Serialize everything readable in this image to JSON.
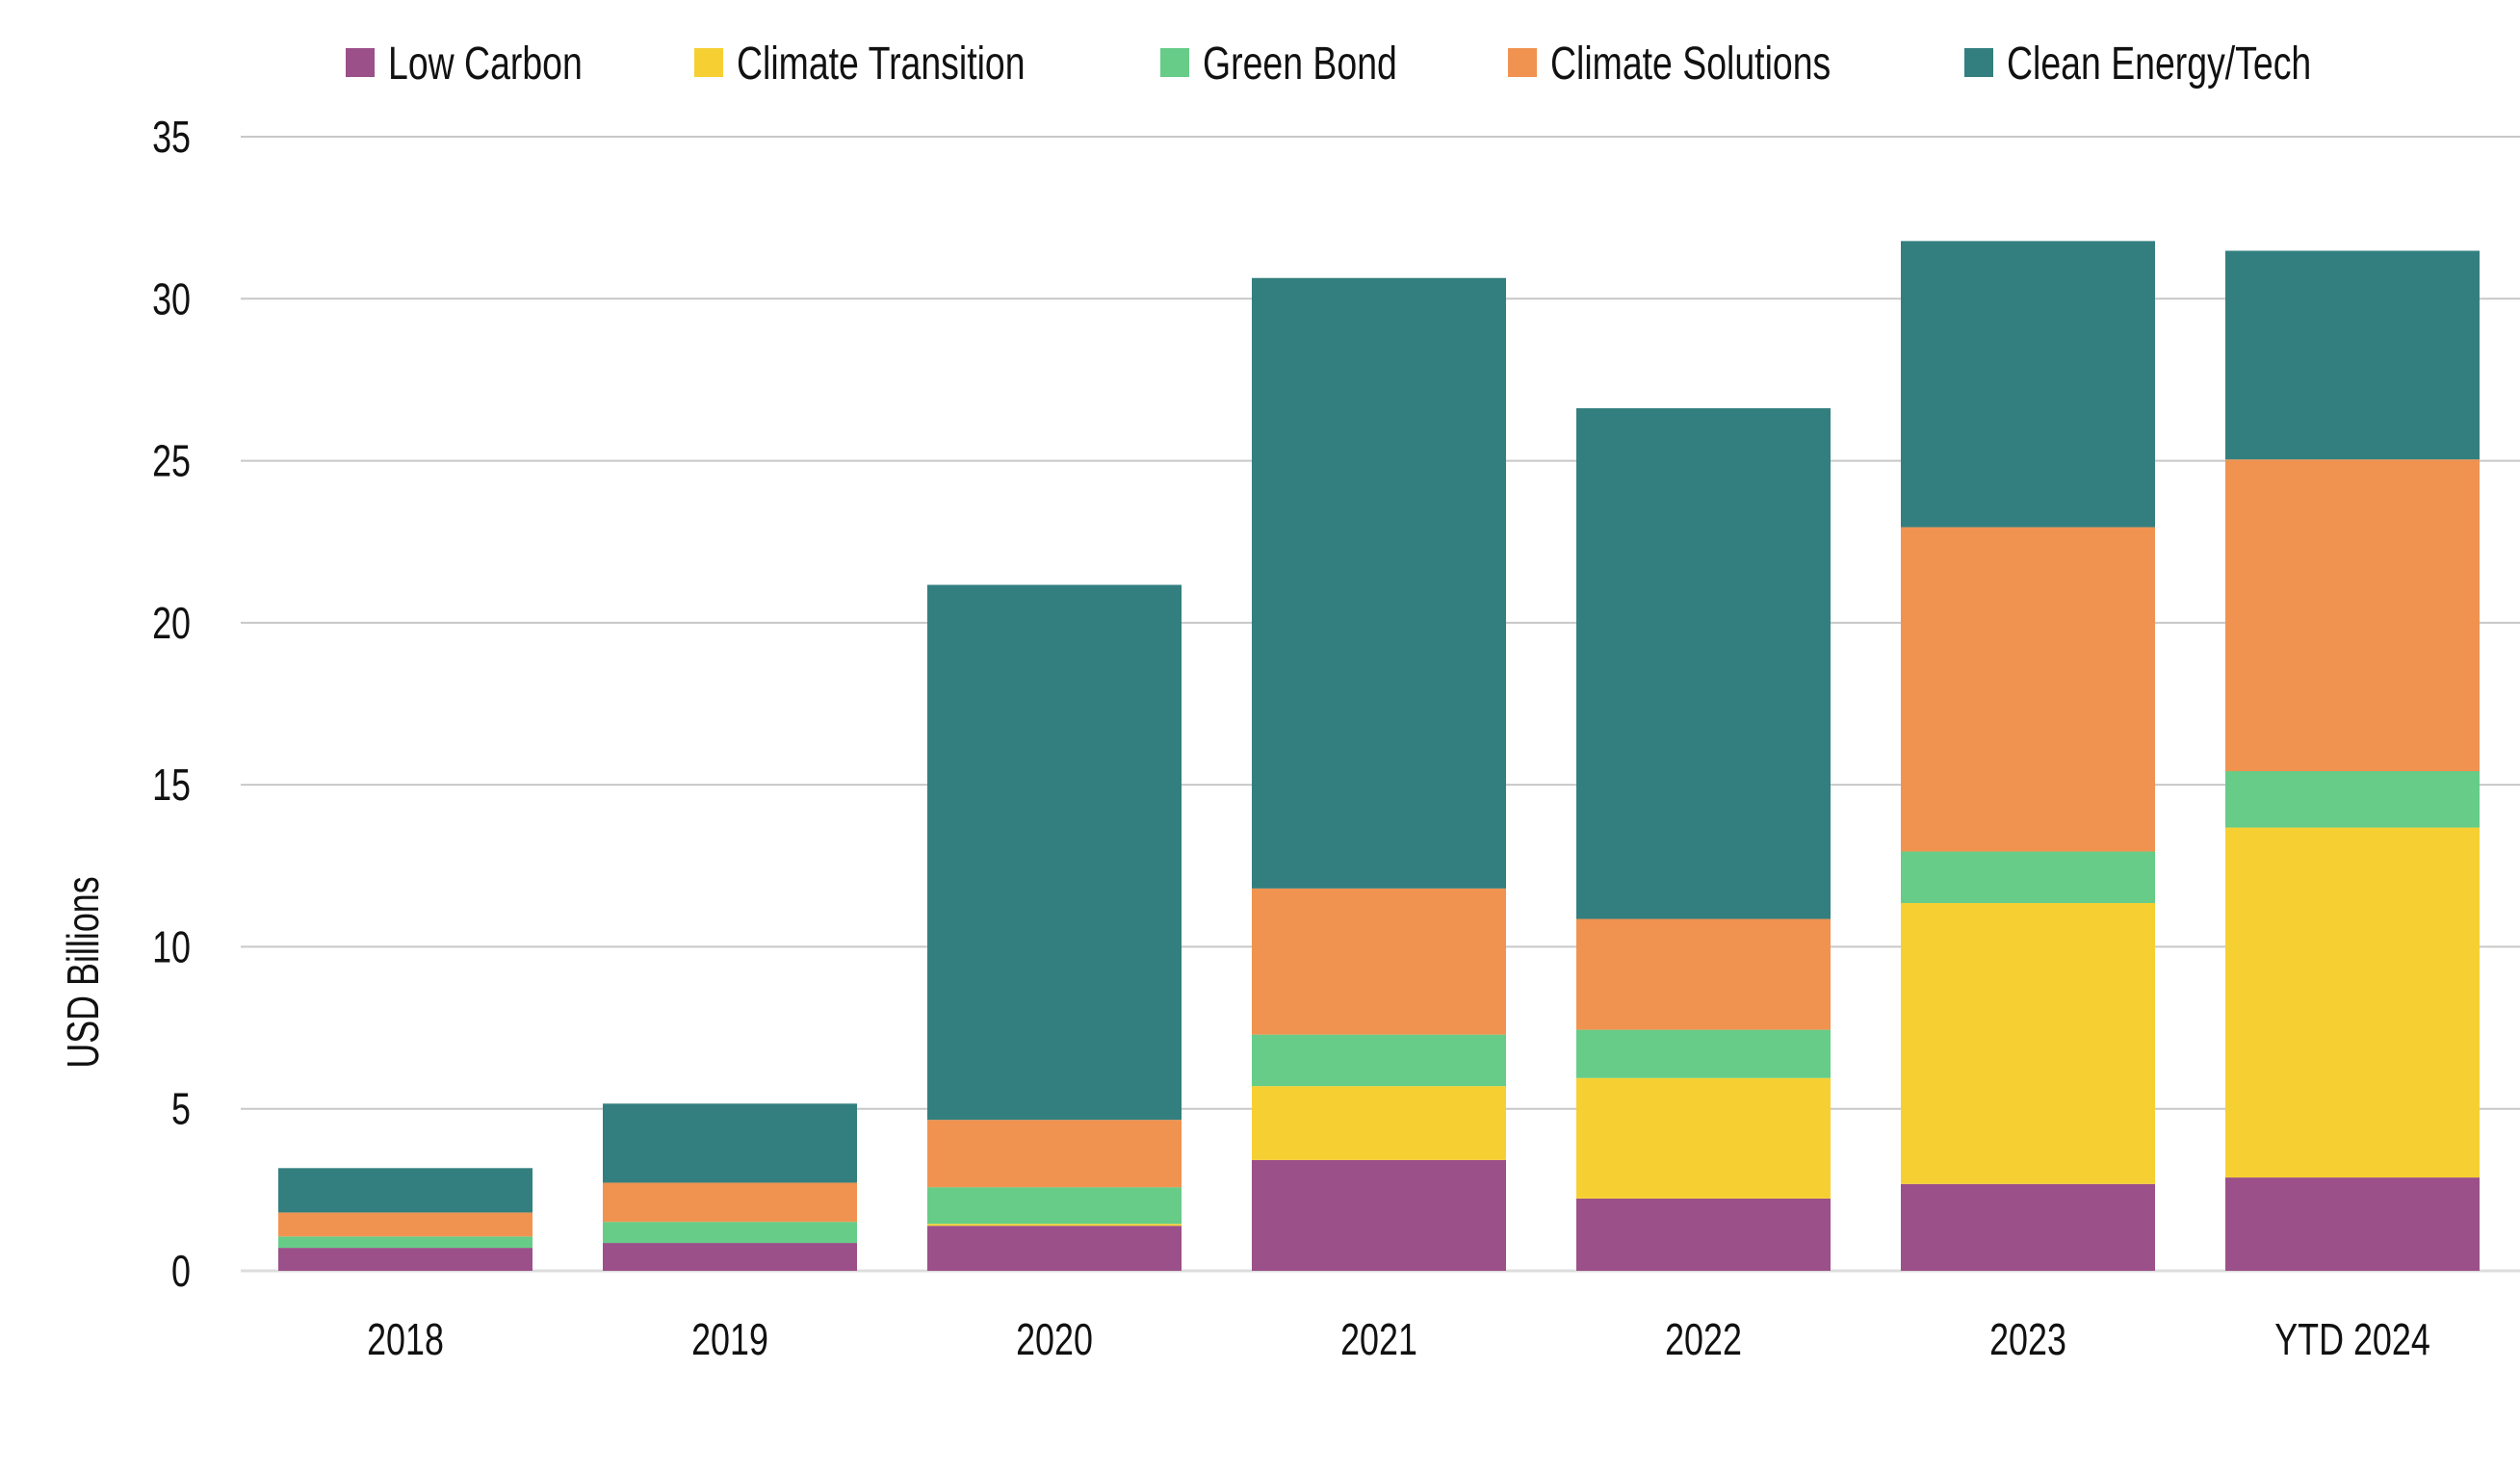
{
  "chart_data": {
    "type": "bar",
    "stacked": true,
    "title": "",
    "xlabel": "",
    "ylabel": "USD Billions",
    "ylim": [
      0,
      35
    ],
    "yticks": [
      0,
      5,
      10,
      15,
      20,
      25,
      30,
      35
    ],
    "grid": true,
    "legend_position": "top",
    "categories": [
      "2018",
      "2019",
      "2020",
      "2021",
      "2022",
      "2023",
      "YTD 2024"
    ],
    "series": [
      {
        "name": "Low Carbon",
        "color": "#9B5089",
        "values": [
          0.71,
          0.86,
          1.39,
          3.42,
          2.23,
          2.68,
          2.88
        ]
      },
      {
        "name": "Climate Transition",
        "color": "#F6D033",
        "values": [
          0,
          0,
          0.06,
          2.28,
          3.72,
          8.67,
          10.8
        ]
      },
      {
        "name": "Green Bond",
        "color": "#66CC88",
        "values": [
          0.35,
          0.65,
          1.13,
          1.59,
          1.49,
          1.59,
          1.74
        ]
      },
      {
        "name": "Climate Solutions",
        "color": "#F09350",
        "values": [
          0.74,
          1.21,
          2.08,
          4.51,
          3.42,
          10.01,
          9.62
        ]
      },
      {
        "name": "Clean Energy/Tech",
        "color": "#337F7F",
        "values": [
          1.37,
          2.44,
          16.51,
          18.84,
          15.76,
          8.83,
          6.44
        ]
      }
    ]
  }
}
